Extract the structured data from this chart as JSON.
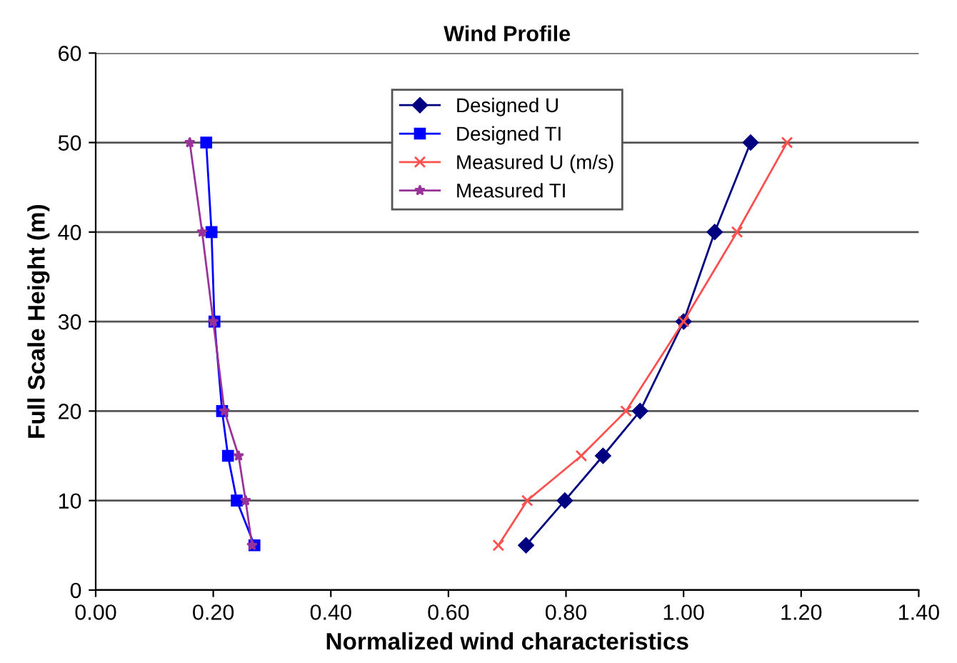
{
  "chart_data": {
    "type": "line",
    "title": "Wind Profile",
    "xlabel": "Normalized wind characteristics",
    "ylabel": "Full Scale Height (m)",
    "xlim": [
      0,
      1.4
    ],
    "xticks": [
      {
        "value": 0,
        "label": "0.00"
      },
      {
        "value": 0.2,
        "label": "0.20"
      },
      {
        "value": 0.4,
        "label": "0.40"
      },
      {
        "value": 0.6,
        "label": "0.60"
      },
      {
        "value": 0.8,
        "label": "0.80"
      },
      {
        "value": 1.0,
        "label": "1.00"
      },
      {
        "value": 1.2,
        "label": "1.20"
      },
      {
        "value": 1.4,
        "label": "1.40"
      }
    ],
    "ylim": [
      0,
      60
    ],
    "yticks": [
      0,
      10,
      20,
      30,
      40,
      50,
      60
    ],
    "grid": "y",
    "legend": "top",
    "series": [
      {
        "name": "Designed U",
        "color": "#000080",
        "marker": "diamond",
        "x": [
          0.732,
          0.798,
          0.863,
          0.926,
          1.0,
          1.053,
          1.114
        ],
        "values": [
          5,
          10,
          15,
          20,
          30,
          40,
          50
        ]
      },
      {
        "name": "Designed TI",
        "color": "#0000ff",
        "marker": "square",
        "x": [
          0.27,
          0.24,
          0.225,
          0.215,
          0.202,
          0.197,
          0.188
        ],
        "values": [
          5,
          10,
          15,
          20,
          30,
          40,
          50
        ]
      },
      {
        "name": "Measured U (m/s)",
        "color": "#ff5050",
        "marker": "cross",
        "x": [
          0.685,
          0.734,
          0.826,
          0.902,
          1.0,
          1.091,
          1.176
        ],
        "values": [
          5,
          10,
          15,
          20,
          30,
          40,
          50
        ]
      },
      {
        "name": "Measured TI",
        "color": "#993399",
        "marker": "star",
        "x": [
          0.266,
          0.255,
          0.243,
          0.219,
          0.2,
          0.181,
          0.16
        ],
        "values": [
          5,
          10,
          15,
          20,
          30,
          40,
          50
        ]
      }
    ]
  }
}
